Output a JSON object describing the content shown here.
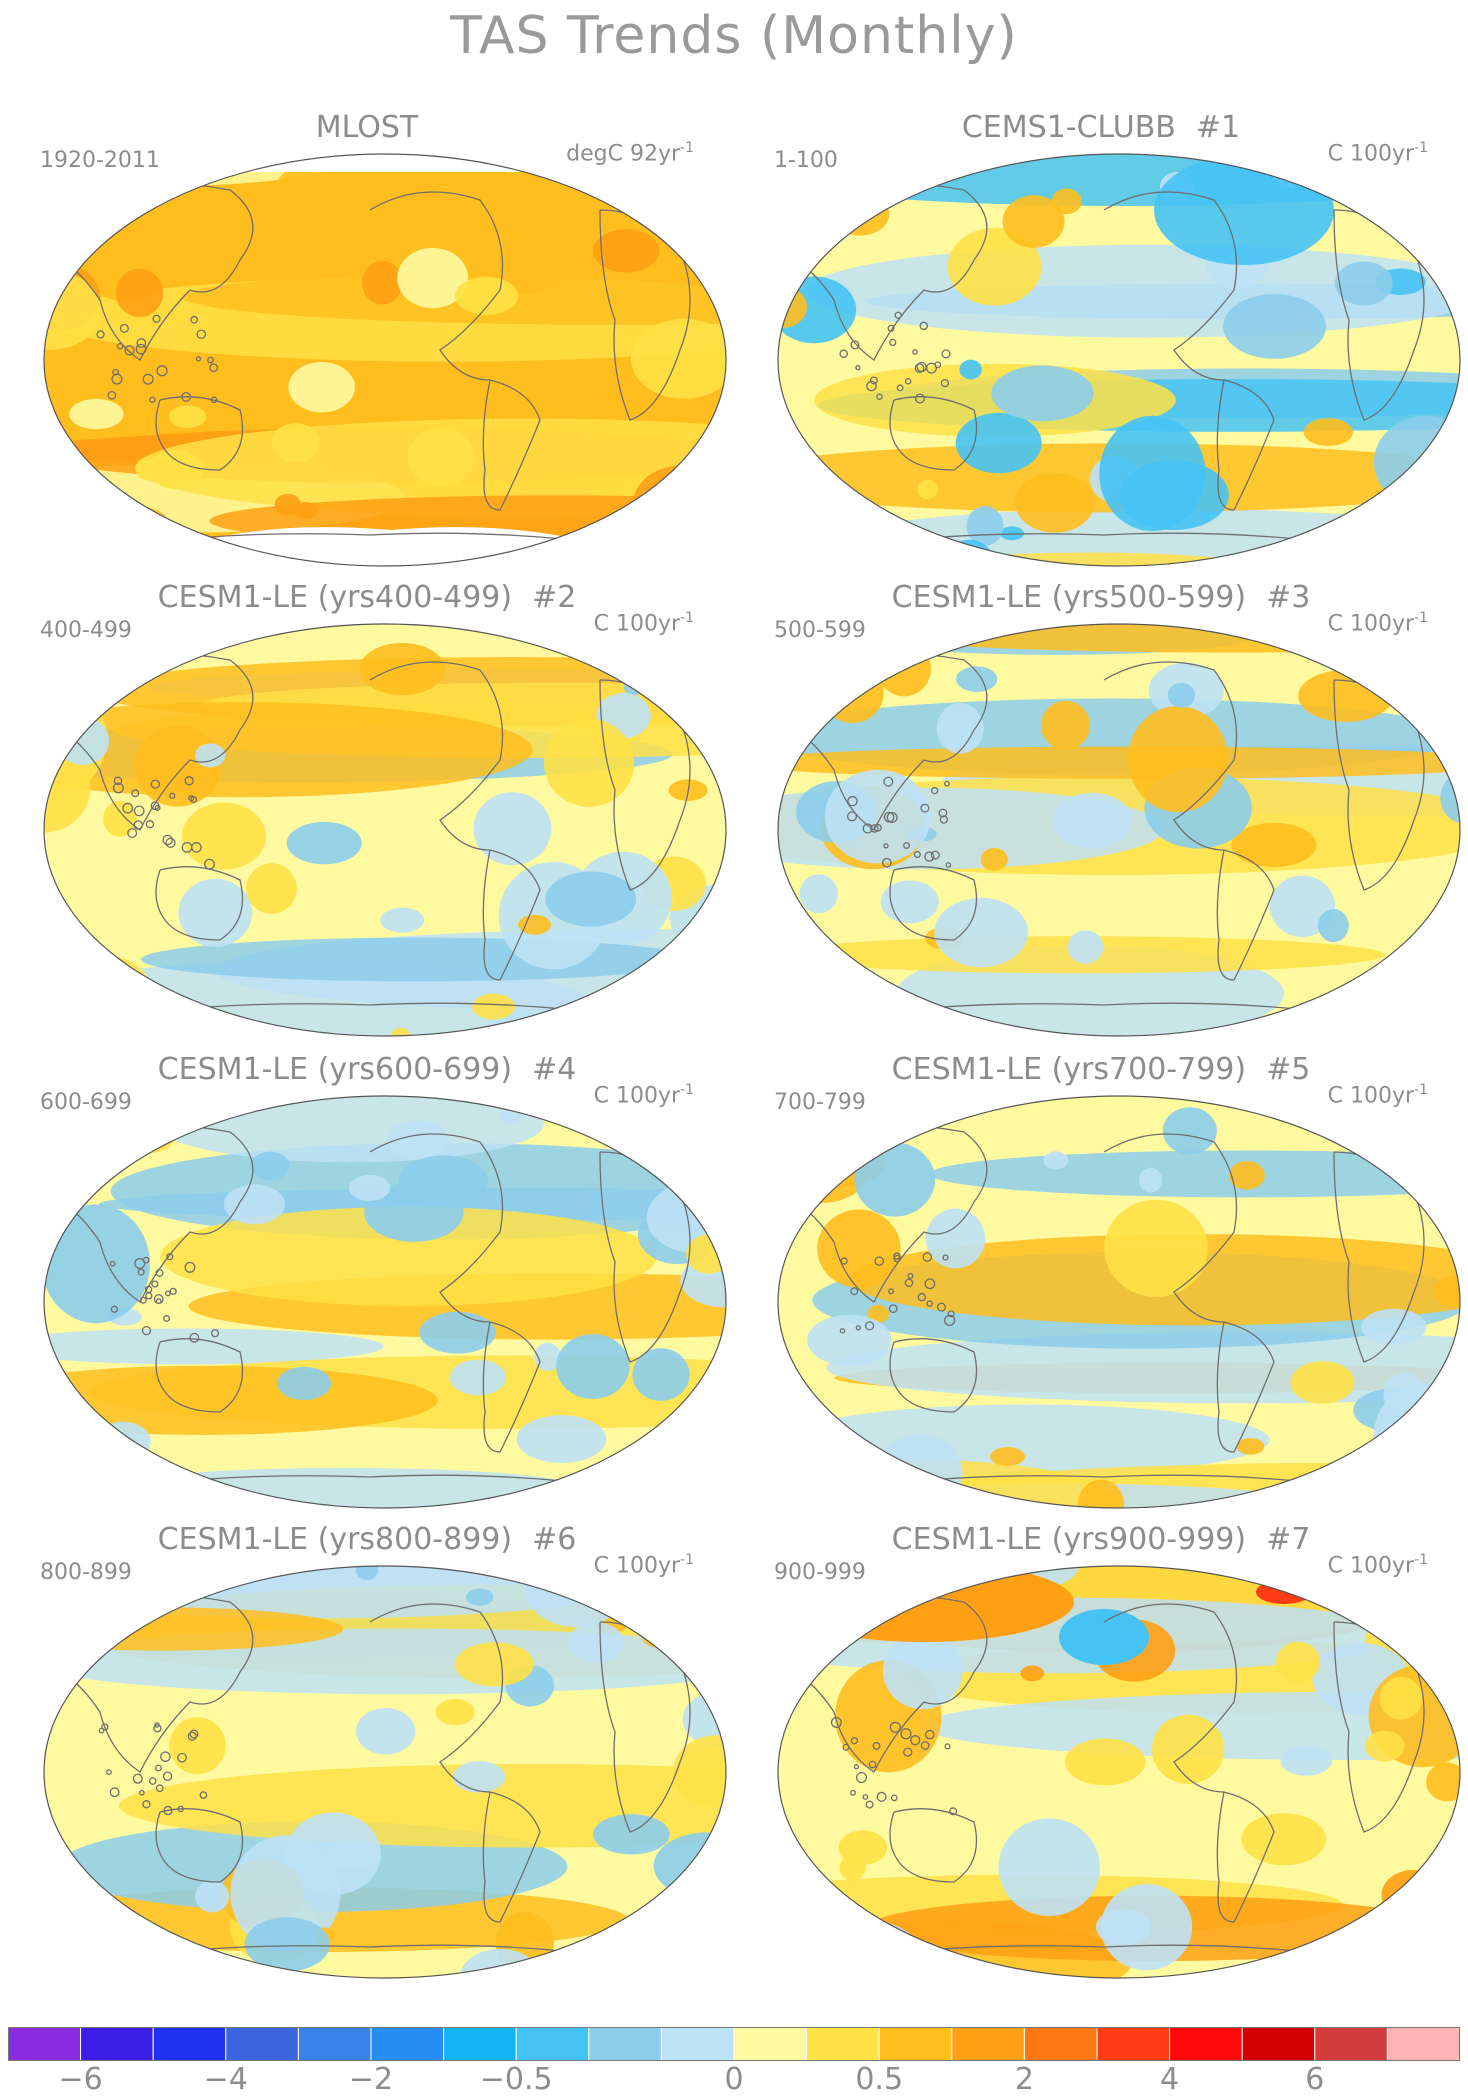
{
  "title": "TAS Trends (Monthly)",
  "panels": [
    {
      "title": "MLOST",
      "tag": "",
      "years": "1920-2011",
      "units": "degC 92yr",
      "exp": "-1",
      "style": "warm"
    },
    {
      "title": "CEMS1-CLUBB",
      "tag": "#1",
      "years": "1-100",
      "units": "C 100yr",
      "exp": "-1",
      "style": "cool"
    },
    {
      "title": "CESM1-LE (yrs400-499)",
      "tag": "#2",
      "years": "400-499",
      "units": "C 100yr",
      "exp": "-1",
      "style": "mixed"
    },
    {
      "title": "CESM1-LE (yrs500-599)",
      "tag": "#3",
      "years": "500-599",
      "units": "C 100yr",
      "exp": "-1",
      "style": "mixed"
    },
    {
      "title": "CESM1-LE (yrs600-699)",
      "tag": "#4",
      "years": "600-699",
      "units": "C 100yr",
      "exp": "-1",
      "style": "mixed"
    },
    {
      "title": "CESM1-LE (yrs700-799)",
      "tag": "#5",
      "years": "700-799",
      "units": "C 100yr",
      "exp": "-1",
      "style": "mixed"
    },
    {
      "title": "CESM1-LE (yrs800-899)",
      "tag": "#6",
      "years": "800-899",
      "units": "C 100yr",
      "exp": "-1",
      "style": "mixed"
    },
    {
      "title": "CESM1-LE (yrs900-999)",
      "tag": "#7",
      "years": "900-999",
      "units": "C 100yr",
      "exp": "-1",
      "style": "warmpole"
    }
  ],
  "colorbar": {
    "colors": [
      "#8a2be2",
      "#3c1ee6",
      "#1e32f0",
      "#3c64dc",
      "#3c82eb",
      "#288cf5",
      "#14b4f5",
      "#46c3f5",
      "#8ccdeb",
      "#bee1f5",
      "#fffaa0",
      "#ffe146",
      "#ffbe1e",
      "#ffa014",
      "#ff7814",
      "#ff3c14",
      "#ff0a0a",
      "#d20000",
      "#d23c3c",
      "#ffb4b4"
    ],
    "labels": [
      "−6",
      "−4",
      "−2",
      "−0.5",
      "0",
      "0.5",
      "2",
      "4",
      "6"
    ]
  },
  "map_colors": {
    "land": "#6e6e6e",
    "ocean_light_yellow": "#fffaa0",
    "yellow": "#ffe146",
    "orange": "#ffbe1e",
    "dark_orange": "#ffa014",
    "light_blue": "#bee1f5",
    "blue": "#8ccdeb",
    "mid_blue": "#46c3f5",
    "red": "#ff3c14"
  }
}
